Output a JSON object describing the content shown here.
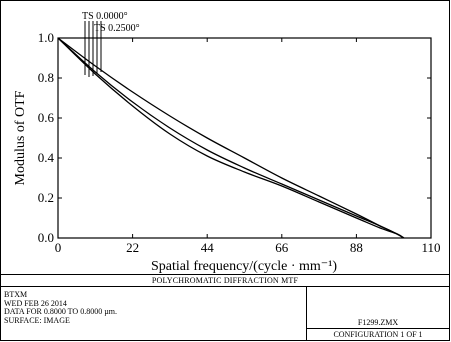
{
  "chart_data": {
    "type": "line",
    "title": "POLYCHROMATIC DIFFRACTION MTF",
    "xlabel": "Spatial frequency/(cycle · mm⁻¹)",
    "ylabel": "Modulus of OTF",
    "xlim": [
      0,
      110
    ],
    "ylim": [
      0,
      1.0
    ],
    "xticks": [
      0,
      22,
      44,
      66,
      88,
      110
    ],
    "yticks": [
      0.0,
      0.2,
      0.4,
      0.6,
      0.8,
      1.0
    ],
    "xtick_labels": [
      "0",
      "22",
      "44",
      "66",
      "88",
      "110"
    ],
    "ytick_labels": [
      "0.0",
      "0.2",
      "0.4",
      "0.6",
      "0.8",
      "1.0"
    ],
    "annotations": [
      "TS 0.0000°",
      "TS 0.2500°"
    ],
    "series": [
      {
        "x": [
          0,
          11,
          22,
          33,
          44,
          55,
          66,
          77,
          88,
          95,
          100,
          102
        ],
        "values": [
          1.0,
          0.86,
          0.73,
          0.61,
          0.5,
          0.4,
          0.3,
          0.21,
          0.12,
          0.06,
          0.02,
          0.0
        ]
      },
      {
        "x": [
          0,
          11,
          22,
          33,
          44,
          55,
          66,
          77,
          88,
          95,
          100,
          102
        ],
        "values": [
          1.0,
          0.83,
          0.68,
          0.55,
          0.44,
          0.35,
          0.27,
          0.19,
          0.11,
          0.06,
          0.02,
          0.0
        ]
      },
      {
        "x": [
          0,
          11,
          22,
          33,
          44,
          55,
          66,
          77,
          88,
          95,
          100,
          102
        ],
        "values": [
          1.0,
          0.82,
          0.66,
          0.52,
          0.41,
          0.33,
          0.26,
          0.18,
          0.1,
          0.05,
          0.02,
          0.0
        ]
      }
    ],
    "grid": false
  },
  "info": {
    "lines": [
      "BTXM",
      "WED FEB 26 2014",
      "DATA FOR 0.8000 TO 0.8000 µm.",
      "SURFACE: IMAGE"
    ],
    "file": "F1299.ZMX",
    "configuration": "CONFIGURATION 1 OF 1"
  },
  "colors": {
    "curve": "#000000",
    "background": "#ffffff"
  }
}
